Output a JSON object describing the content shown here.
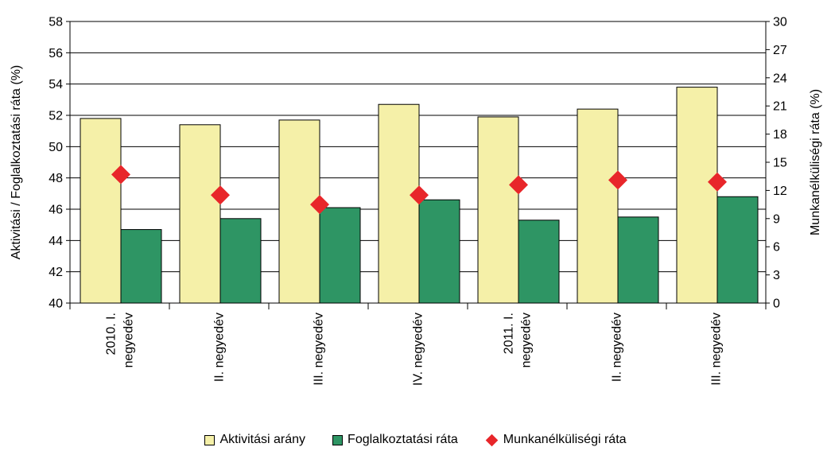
{
  "chart_data": {
    "type": "bar",
    "categories": [
      [
        "2010. I.",
        "negyedév"
      ],
      [
        "II. negyedév"
      ],
      [
        "III. negyedév"
      ],
      [
        "IV. negyedév"
      ],
      [
        "2011. I.",
        "negyedév"
      ],
      [
        "II. negyedév"
      ],
      [
        "III. negyedév"
      ]
    ],
    "series": [
      {
        "name": "Aktivitási arány",
        "axis": "left",
        "kind": "bar",
        "color": "#f5f0a8",
        "values": [
          51.8,
          51.4,
          51.7,
          52.7,
          51.9,
          52.4,
          53.8
        ]
      },
      {
        "name": "Foglalkoztatási ráta",
        "axis": "left",
        "kind": "bar",
        "color": "#2e9564",
        "values": [
          44.7,
          45.4,
          46.1,
          46.6,
          45.3,
          45.5,
          46.8
        ]
      },
      {
        "name": "Munkanélküliségi ráta",
        "axis": "right",
        "kind": "marker",
        "color": "#e8262a",
        "values": [
          13.7,
          11.5,
          10.5,
          11.5,
          12.6,
          13.1,
          12.9
        ]
      }
    ],
    "ylabel": "Aktivitási / Foglalkoztatási ráta (%)",
    "y2label": "Munkanélküliségi ráta (%)",
    "ylim": [
      40,
      58
    ],
    "yticks": [
      40,
      42,
      44,
      46,
      48,
      50,
      52,
      54,
      56,
      58
    ],
    "y2lim": [
      0,
      30
    ],
    "y2ticks": [
      0,
      3,
      6,
      9,
      12,
      15,
      18,
      21,
      24,
      27,
      30
    ],
    "grid": true,
    "legend": "bottom"
  }
}
